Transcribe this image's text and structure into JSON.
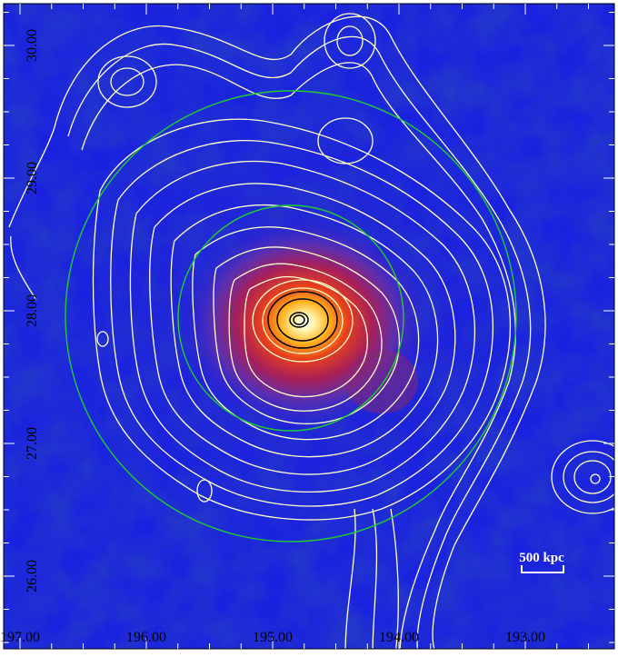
{
  "image": {
    "type": "astronomical-xray-image-with-contours",
    "colormap": [
      "#1a1ed8",
      "#5a2fb0",
      "#a3205a",
      "#e2351d",
      "#ff9b1a",
      "#ffffff"
    ],
    "contour_color": "#ffffcc",
    "inner_contour_color": "#000000",
    "circle_color": "#22cc33"
  },
  "axes": {
    "x_ticks": [
      {
        "label": "197.00",
        "value": 197.0
      },
      {
        "label": "196.00",
        "value": 196.0
      },
      {
        "label": "195.00",
        "value": 195.0
      },
      {
        "label": "194.00",
        "value": 194.0
      },
      {
        "label": "193.00",
        "value": 193.0
      }
    ],
    "y_ticks": [
      {
        "label": "30.00",
        "value": 30.0
      },
      {
        "label": "29.00",
        "value": 29.0
      },
      {
        "label": "28.00",
        "value": 28.0
      },
      {
        "label": "27.00",
        "value": 27.0
      },
      {
        "label": "26.00",
        "value": 26.0
      }
    ]
  },
  "scale_bar": {
    "label": "500 kpc"
  }
}
